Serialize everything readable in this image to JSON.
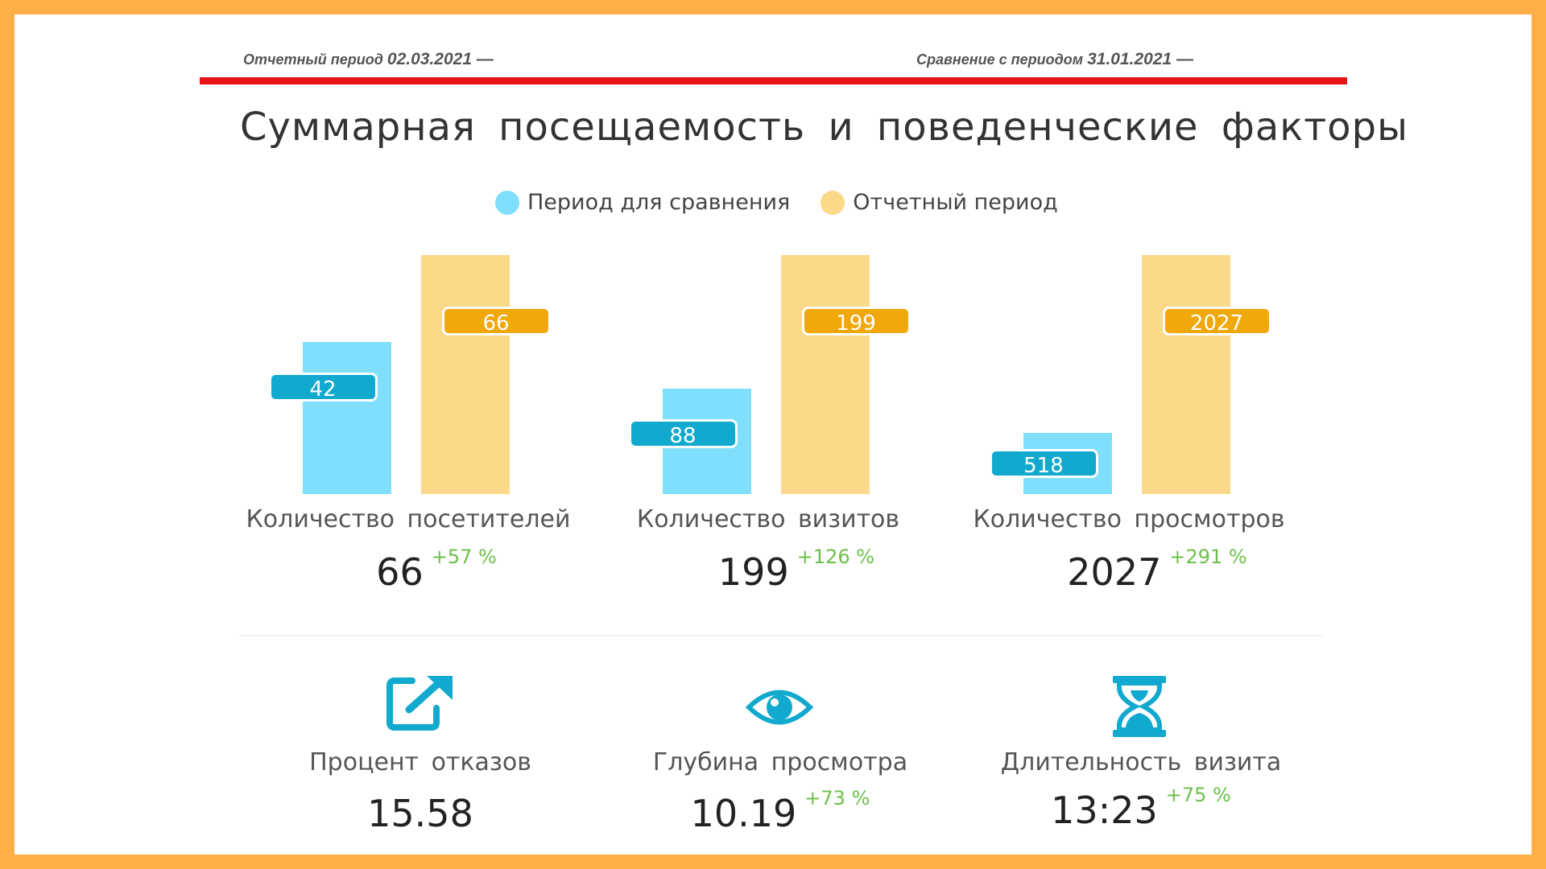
{
  "header": {
    "report_label": "Отчетный период",
    "report_date": "02.03.2021 —",
    "compare_label": "Сравнение с периодом",
    "compare_date": "31.01.2021 —"
  },
  "title": "Суммарная посещаемость и поведенческие факторы",
  "legend": {
    "compare": "Период для сравнения",
    "report": "Отчетный период"
  },
  "colors": {
    "compare_bar": "#7fdffc",
    "report_bar": "#fcd889",
    "compare_label": "#12a9cf",
    "report_label": "#f0a80a",
    "delta": "#6cc04a",
    "icon": "#12a9cf",
    "accent_line": "#e8141a"
  },
  "chart_data": {
    "type": "bar",
    "categories": [
      "Количество посетителей",
      "Количество визитов",
      "Количество просмотров"
    ],
    "series": [
      {
        "name": "Период для сравнения",
        "values": [
          42,
          88,
          518
        ]
      },
      {
        "name": "Отчетный период",
        "values": [
          66,
          199,
          2027
        ]
      }
    ],
    "totals": [
      "66",
      "199",
      "2027"
    ],
    "deltas": [
      "+57 %",
      "+126 %",
      "+291 %"
    ]
  },
  "metrics": [
    {
      "icon": "external-link-icon",
      "label": "Процент отказов",
      "value": "15.58",
      "delta": ""
    },
    {
      "icon": "eye-icon",
      "label": "Глубина  просмотра",
      "value": "10.19",
      "delta": "+73 %"
    },
    {
      "icon": "hourglass-icon",
      "label": "Длительность визита",
      "value": "13:23",
      "delta": "+75 %"
    }
  ]
}
